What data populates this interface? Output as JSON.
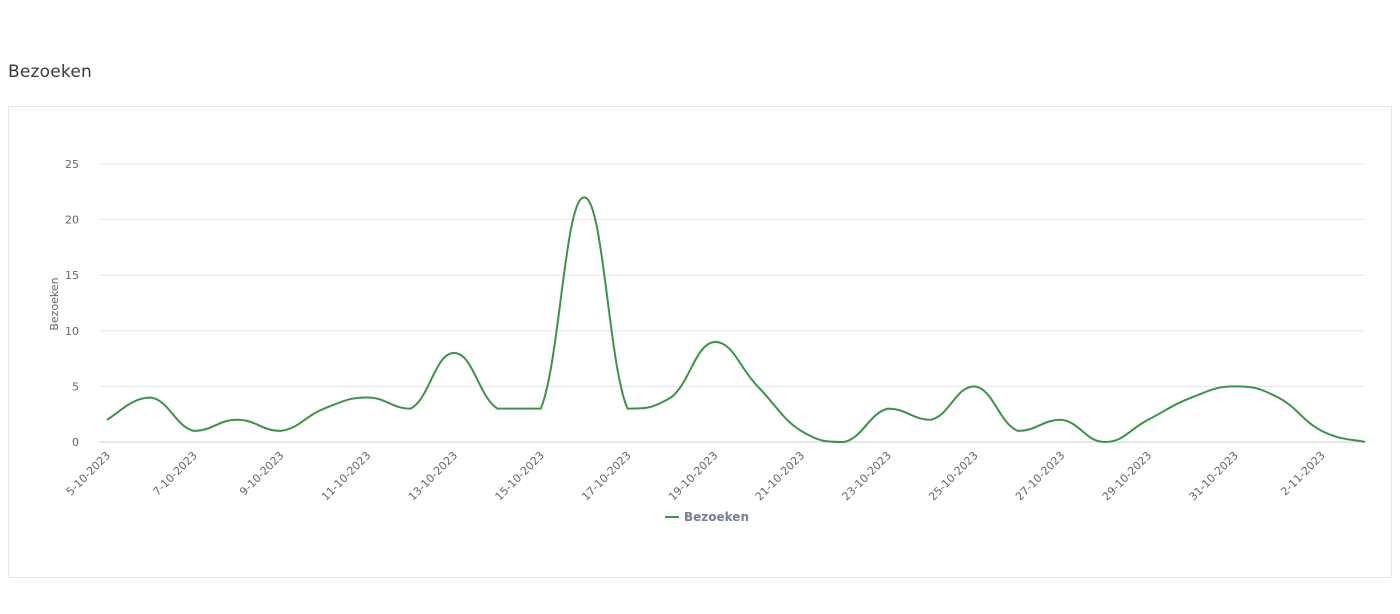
{
  "page": {
    "title": "Bezoeken"
  },
  "chart_data": {
    "type": "line",
    "ylabel": "Bezoeken",
    "ylim": [
      0,
      25
    ],
    "yticks": [
      0,
      5,
      10,
      15,
      20,
      25
    ],
    "legend": {
      "placement": "bottom-center"
    },
    "grid": true,
    "x": [
      "5-10-2023",
      "6-10-2023",
      "7-10-2023",
      "8-10-2023",
      "9-10-2023",
      "10-10-2023",
      "11-10-2023",
      "12-10-2023",
      "13-10-2023",
      "14-10-2023",
      "15-10-2023",
      "16-10-2023",
      "17-10-2023",
      "18-10-2023",
      "19-10-2023",
      "20-10-2023",
      "21-10-2023",
      "22-10-2023",
      "23-10-2023",
      "24-10-2023",
      "25-10-2023",
      "26-10-2023",
      "27-10-2023",
      "28-10-2023",
      "29-10-2023",
      "30-10-2023",
      "31-10-2023",
      "1-11-2023",
      "2-11-2023",
      "3-11-2023"
    ],
    "xtick_labels": [
      "5-10-2023",
      "7-10-2023",
      "9-10-2023",
      "11-10-2023",
      "13-10-2023",
      "15-10-2023",
      "17-10-2023",
      "19-10-2023",
      "21-10-2023",
      "23-10-2023",
      "25-10-2023",
      "27-10-2023",
      "29-10-2023",
      "31-10-2023",
      "2-11-2023"
    ],
    "series": [
      {
        "name": "Bezoeken",
        "color": "#3a9447",
        "values": [
          2,
          4,
          1,
          2,
          1,
          3,
          4,
          3,
          8,
          3,
          3,
          22,
          3,
          4,
          9,
          5,
          1,
          0,
          3,
          2,
          5,
          1,
          2,
          0,
          2,
          4,
          5,
          4,
          1,
          0
        ]
      }
    ]
  }
}
